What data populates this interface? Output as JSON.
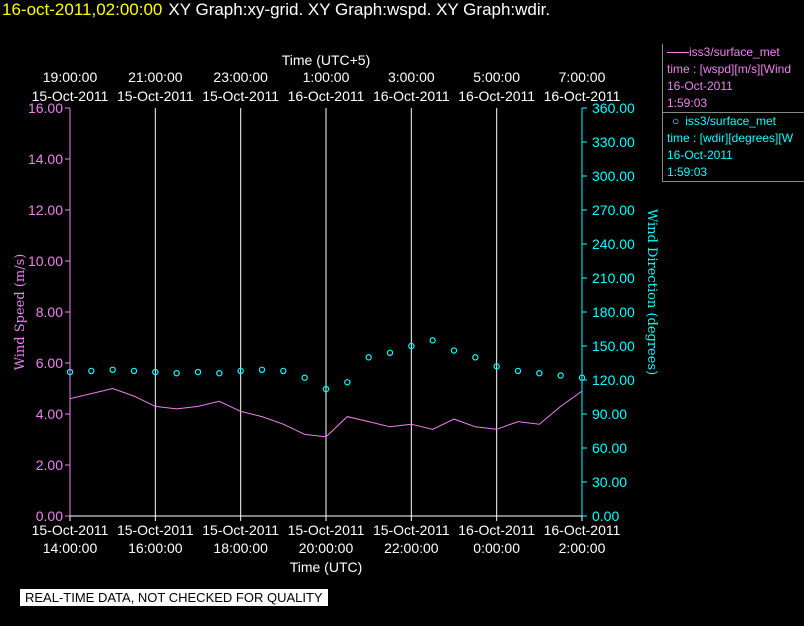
{
  "title_bar": {
    "timestamp": "16-oct-2011,02:00:00",
    "graph_titles": "XY Graph:xy-grid.  XY Graph:wspd.  XY Graph:wdir."
  },
  "legend": {
    "wspd": {
      "name": "iss3/surface_met",
      "desc": "time : [wspd][m/s][Wind",
      "date": "16-Oct-2011",
      "time": "1:59:03"
    },
    "wdir": {
      "name": "iss3/surface_met",
      "desc": "time : [wdir][degrees][W",
      "date": "16-Oct-2011",
      "time": "1:59:03"
    }
  },
  "quality_note": "REAL-TIME DATA, NOT CHECKED FOR QUALITY",
  "colors": {
    "wspd": "#ee82ee",
    "wdir": "#00ffff",
    "timestamp": "#ffff00",
    "background": "#000000"
  },
  "chart_data": {
    "type": "line",
    "x_axis_bottom": {
      "label": "Time (UTC)",
      "range": [
        "15-Oct-2011 14:00:00",
        "16-Oct-2011 02:00:00"
      ],
      "ticks": [
        {
          "date": "15-Oct-2011",
          "time": "14:00:00"
        },
        {
          "date": "15-Oct-2011",
          "time": "16:00:00"
        },
        {
          "date": "15-Oct-2011",
          "time": "18:00:00"
        },
        {
          "date": "15-Oct-2011",
          "time": "20:00:00"
        },
        {
          "date": "15-Oct-2011",
          "time": "22:00:00"
        },
        {
          "date": "16-Oct-2011",
          "time": "0:00:00"
        },
        {
          "date": "16-Oct-2011",
          "time": "2:00:00"
        }
      ]
    },
    "x_axis_top": {
      "label": "Time (UTC+5)",
      "ticks": [
        {
          "time": "19:00:00",
          "date": "15-Oct-2011"
        },
        {
          "time": "21:00:00",
          "date": "15-Oct-2011"
        },
        {
          "time": "23:00:00",
          "date": "15-Oct-2011"
        },
        {
          "time": "1:00:00",
          "date": "16-Oct-2011"
        },
        {
          "time": "3:00:00",
          "date": "16-Oct-2011"
        },
        {
          "time": "5:00:00",
          "date": "16-Oct-2011"
        },
        {
          "time": "7:00:00",
          "date": "16-Oct-2011"
        }
      ]
    },
    "y_left": {
      "label": "Wind Speed (m/s)",
      "range": [
        0,
        16
      ],
      "ticks": [
        "0.00",
        "2.00",
        "4.00",
        "6.00",
        "8.00",
        "10.00",
        "12.00",
        "14.00",
        "16.00"
      ]
    },
    "y_right": {
      "label": "Wind Direction (degrees)",
      "range": [
        0,
        360
      ],
      "ticks": [
        "0.00",
        "30.00",
        "60.00",
        "90.00",
        "120.00",
        "150.00",
        "180.00",
        "210.00",
        "240.00",
        "270.00",
        "300.00",
        "330.00",
        "360.00"
      ]
    },
    "grid": "vertical",
    "series": [
      {
        "name": "iss3/surface_met",
        "quantity": "wspd",
        "style": "line",
        "axis": "left",
        "x_hours_utc": [
          14.0,
          14.5,
          15.0,
          15.5,
          16.0,
          16.5,
          17.0,
          17.5,
          18.0,
          18.5,
          19.0,
          19.5,
          20.0,
          20.5,
          21.0,
          21.5,
          22.0,
          22.5,
          23.0,
          23.5,
          24.0,
          24.5,
          25.0,
          25.5,
          26.0
        ],
        "values": [
          4.6,
          4.8,
          5.0,
          4.7,
          4.3,
          4.2,
          4.3,
          4.5,
          4.1,
          3.9,
          3.6,
          3.2,
          3.1,
          3.9,
          3.7,
          3.5,
          3.6,
          3.4,
          3.8,
          3.5,
          3.4,
          3.7,
          3.6,
          4.3,
          4.9
        ]
      },
      {
        "name": "iss3/surface_met",
        "quantity": "wdir",
        "style": "scatter",
        "axis": "right",
        "x_hours_utc": [
          14.0,
          14.5,
          15.0,
          15.5,
          16.0,
          16.5,
          17.0,
          17.5,
          18.0,
          18.5,
          19.0,
          19.5,
          20.0,
          20.5,
          21.0,
          21.5,
          22.0,
          22.5,
          23.0,
          23.5,
          24.0,
          24.5,
          25.0,
          25.5,
          26.0
        ],
        "values": [
          127,
          128,
          129,
          128,
          127,
          126,
          127,
          126,
          128,
          129,
          128,
          122,
          112,
          118,
          140,
          144,
          150,
          155,
          146,
          140,
          132,
          128,
          126,
          124,
          122
        ]
      }
    ]
  }
}
